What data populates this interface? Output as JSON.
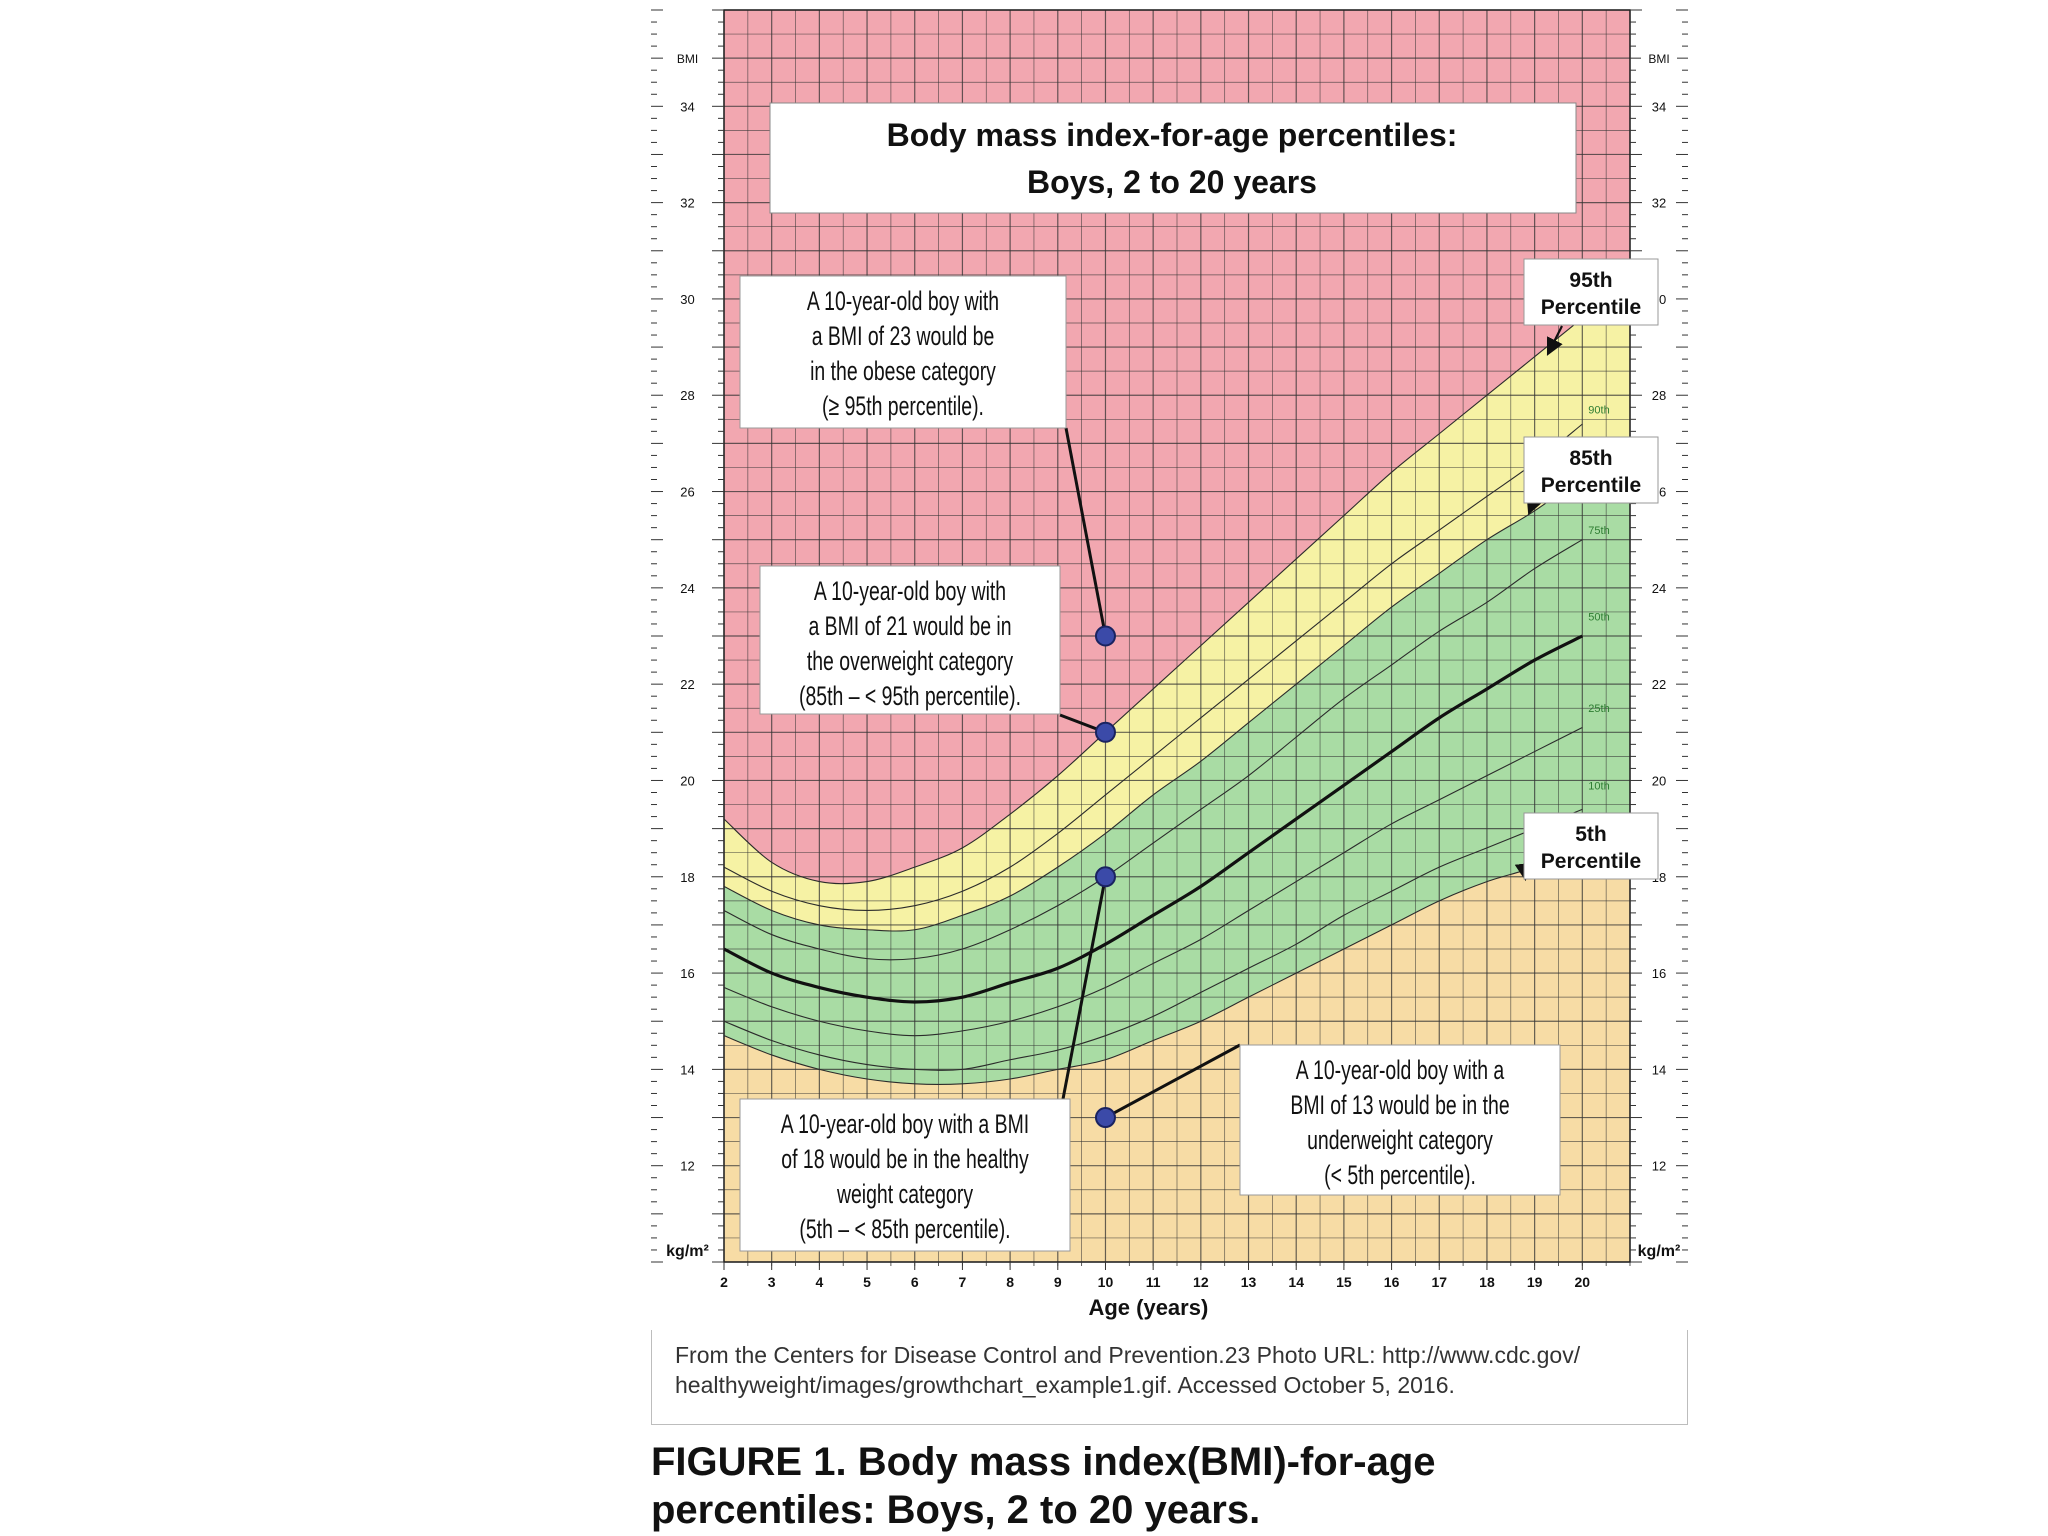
{
  "caption": {
    "line1": "FIGURE 1. Body mass index(BMI)-for-age",
    "line2": "percentiles: Boys, 2 to 20 years."
  },
  "source": {
    "line1": "From the Centers for Disease Control and Prevention.23 Photo URL: http://www.cdc.gov/",
    "line2": "healthyweight/images/growthchart_example1.gif. Accessed October 5, 2016."
  },
  "colors": {
    "obese": "#f2a7b0",
    "overweight": "#f6f2a4",
    "healthy": "#a9dca4",
    "underweight": "#f7dca5",
    "grid": "#333333",
    "median": "#111111",
    "dot": "#3b4aa8"
  },
  "chart_data": {
    "type": "line",
    "title": "Body mass index-for-age percentiles:",
    "subtitle": "Boys, 2 to 20 years",
    "xlabel": "Age (years)",
    "ylabel": "BMI",
    "y_unit": "kg/m²",
    "xlim": [
      2,
      21
    ],
    "ylim": [
      10,
      36
    ],
    "x_ticks": [
      2,
      3,
      4,
      5,
      6,
      7,
      8,
      9,
      10,
      11,
      12,
      13,
      14,
      15,
      16,
      17,
      18,
      19,
      20
    ],
    "y_ticks": [
      12,
      14,
      16,
      18,
      20,
      22,
      24,
      26,
      28,
      30,
      32,
      34
    ],
    "grid": true,
    "x": [
      2,
      3,
      4,
      5,
      6,
      7,
      8,
      9,
      10,
      11,
      12,
      13,
      14,
      15,
      16,
      17,
      18,
      19,
      20
    ],
    "series": [
      {
        "name": "5th",
        "values": [
          14.7,
          14.3,
          14.0,
          13.8,
          13.7,
          13.7,
          13.8,
          14.0,
          14.2,
          14.6,
          15.0,
          15.5,
          16.0,
          16.5,
          17.0,
          17.5,
          17.9,
          18.2,
          18.6
        ]
      },
      {
        "name": "10th",
        "values": [
          15.0,
          14.6,
          14.3,
          14.1,
          14.0,
          14.0,
          14.2,
          14.4,
          14.7,
          15.1,
          15.6,
          16.1,
          16.6,
          17.2,
          17.7,
          18.2,
          18.6,
          19.0,
          19.4
        ]
      },
      {
        "name": "25th",
        "values": [
          15.7,
          15.3,
          15.0,
          14.8,
          14.7,
          14.8,
          15.0,
          15.3,
          15.7,
          16.2,
          16.7,
          17.3,
          17.9,
          18.5,
          19.1,
          19.6,
          20.1,
          20.6,
          21.1
        ]
      },
      {
        "name": "50th",
        "values": [
          16.5,
          16.0,
          15.7,
          15.5,
          15.4,
          15.5,
          15.8,
          16.1,
          16.6,
          17.2,
          17.8,
          18.5,
          19.2,
          19.9,
          20.6,
          21.3,
          21.9,
          22.5,
          23.0
        ]
      },
      {
        "name": "75th",
        "values": [
          17.3,
          16.8,
          16.5,
          16.3,
          16.3,
          16.5,
          16.9,
          17.4,
          18.0,
          18.7,
          19.4,
          20.1,
          20.9,
          21.7,
          22.4,
          23.1,
          23.7,
          24.4,
          25.0
        ]
      },
      {
        "name": "85th",
        "values": [
          17.8,
          17.3,
          17.0,
          16.9,
          16.9,
          17.2,
          17.6,
          18.2,
          18.9,
          19.7,
          20.4,
          21.2,
          22.0,
          22.8,
          23.6,
          24.3,
          25.0,
          25.6,
          26.3
        ]
      },
      {
        "name": "90th",
        "values": [
          18.2,
          17.7,
          17.4,
          17.3,
          17.4,
          17.7,
          18.2,
          18.9,
          19.7,
          20.5,
          21.3,
          22.1,
          22.9,
          23.7,
          24.5,
          25.2,
          25.9,
          26.6,
          27.4
        ]
      },
      {
        "name": "95th",
        "values": [
          19.2,
          18.3,
          17.9,
          17.9,
          18.2,
          18.6,
          19.3,
          20.1,
          21.0,
          21.9,
          22.8,
          23.7,
          24.6,
          25.5,
          26.4,
          27.2,
          28.0,
          28.8,
          29.6
        ]
      }
    ],
    "points": [
      {
        "x": 10,
        "y": 23,
        "label": "obese"
      },
      {
        "x": 10,
        "y": 21,
        "label": "overweight"
      },
      {
        "x": 10,
        "y": 18,
        "label": "healthy"
      },
      {
        "x": 10,
        "y": 13,
        "label": "underweight"
      }
    ],
    "annotations": {
      "obese": [
        "A 10-year-old boy with",
        "a BMI of 23 would be",
        "in the obese category",
        "(≥ 95th percentile)."
      ],
      "overweight": [
        "A 10-year-old boy with",
        "a BMI of 21 would be in",
        "the overweight category",
        "(85th – < 95th percentile)."
      ],
      "healthy": [
        "A 10-year-old boy with a BMI",
        "of 18 would be in the healthy",
        "weight category",
        "(5th – < 85th percentile)."
      ],
      "underweight": [
        "A 10-year-old boy with a",
        "BMI of 13 would be in the",
        "underweight category",
        "(< 5th percentile)."
      ]
    },
    "percentile_callouts": {
      "p95": [
        "95th",
        "Percentile"
      ],
      "p85": [
        "85th",
        "Percentile"
      ],
      "p5": [
        "5th",
        "Percentile"
      ]
    },
    "small_curve_labels": [
      "90th",
      "75th",
      "50th",
      "25th",
      "10th"
    ]
  }
}
